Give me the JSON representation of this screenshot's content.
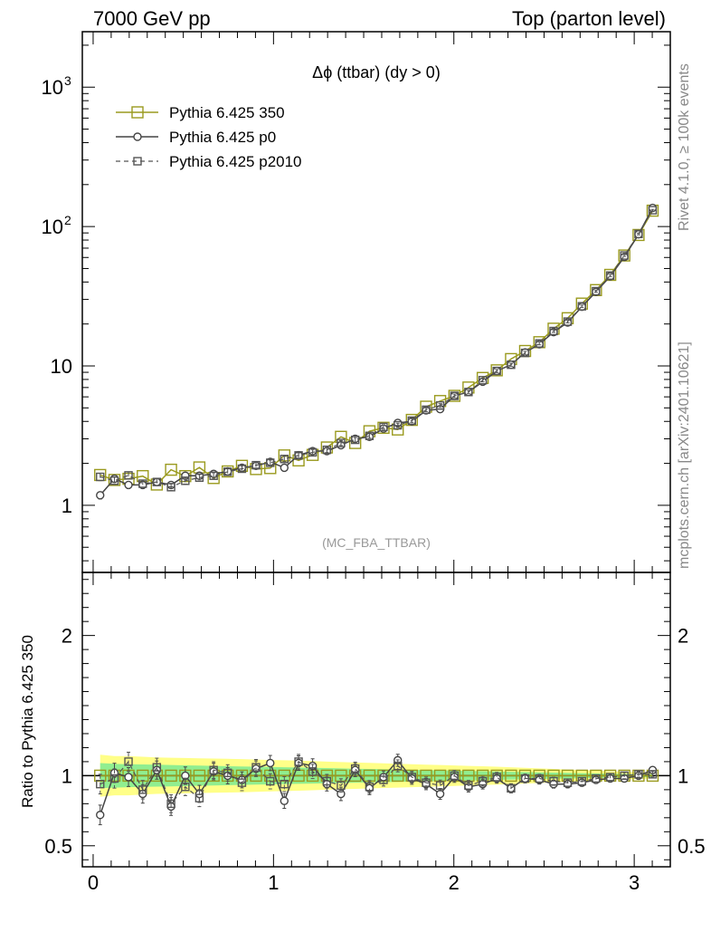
{
  "header": {
    "left": "7000 GeV pp",
    "right": "Top (parton level)"
  },
  "side_labels": {
    "rivet": "Rivet 4.1.0, ≥ 100k events",
    "mcplots": "mcplots.cern.ch [arXiv:2401.10621]"
  },
  "colors": {
    "p350": "#9a9a1e",
    "p0": "#444444",
    "p2010": "#555555",
    "band_inner": "#90ee90",
    "band_outer": "#ffff88"
  },
  "chart_data": [
    {
      "id": "main",
      "type": "line",
      "title": "Δϕ (ttbar) (dy > 0)",
      "watermark": "(MC_FBA_TTBAR)",
      "yscale": "log",
      "xlim": [
        -0.06,
        3.2
      ],
      "ylim": [
        0.33,
        2500
      ],
      "yticks": [
        {
          "value": 1,
          "label": "1"
        },
        {
          "value": 10,
          "label": "10"
        },
        {
          "value": 100,
          "label": "10",
          "exp": "2"
        },
        {
          "value": 1000,
          "label": "10",
          "exp": "3"
        }
      ],
      "x": [
        0.039,
        0.118,
        0.196,
        0.275,
        0.353,
        0.432,
        0.511,
        0.589,
        0.668,
        0.746,
        0.825,
        0.903,
        0.982,
        1.06,
        1.139,
        1.217,
        1.296,
        1.374,
        1.453,
        1.532,
        1.61,
        1.689,
        1.767,
        1.846,
        1.924,
        2.003,
        2.081,
        2.16,
        2.238,
        2.317,
        2.395,
        2.474,
        2.553,
        2.631,
        2.71,
        2.788,
        2.867,
        2.945,
        3.024,
        3.102
      ],
      "series": [
        {
          "name": "Pythia 6.425 350",
          "style": "square-solid",
          "values": [
            1.65,
            1.52,
            1.55,
            1.62,
            1.41,
            1.8,
            1.62,
            1.87,
            1.57,
            1.75,
            1.92,
            1.82,
            1.85,
            2.28,
            2.1,
            2.3,
            2.6,
            3.1,
            2.8,
            3.4,
            3.6,
            3.5,
            4.1,
            5.1,
            5.6,
            6.1,
            7.0,
            8.2,
            9.3,
            11.2,
            12.8,
            14.8,
            18.5,
            22.0,
            28.0,
            35.0,
            45.0,
            62.0,
            87.0,
            130.0
          ]
        },
        {
          "name": "Pythia 6.425 p0",
          "style": "circle-solid",
          "values": [
            1.18,
            1.55,
            1.4,
            1.4,
            1.47,
            1.4,
            1.63,
            1.63,
            1.68,
            1.75,
            1.86,
            1.92,
            2.05,
            1.86,
            2.29,
            2.45,
            2.45,
            2.7,
            3.0,
            3.1,
            3.55,
            3.9,
            4.0,
            4.8,
            4.9,
            6.1,
            6.5,
            7.7,
            9.2,
            10.2,
            12.5,
            14.3,
            17.5,
            20.5,
            26.6,
            34.0,
            44.0,
            60.5,
            88.0,
            136.0
          ]
        },
        {
          "name": "Pythia 6.425 p2010",
          "style": "square-dashed",
          "values": [
            1.6,
            1.5,
            1.64,
            1.43,
            1.47,
            1.35,
            1.5,
            1.58,
            1.63,
            1.74,
            1.83,
            1.94,
            2.02,
            2.15,
            2.28,
            2.4,
            2.5,
            2.8,
            2.95,
            3.15,
            3.65,
            3.75,
            4.05,
            4.85,
            5.2,
            6.1,
            6.5,
            7.9,
            9.2,
            10.2,
            12.4,
            14.5,
            17.8,
            20.8,
            26.8,
            34.4,
            44.5,
            62.0,
            88.5,
            131.0
          ]
        }
      ]
    },
    {
      "id": "ratio",
      "type": "line",
      "ylabel": "Ratio to Pythia 6.425 350",
      "xlim": [
        -0.06,
        3.2
      ],
      "ylim": [
        0.35,
        2.45
      ],
      "xticks": [
        0,
        1,
        2,
        3
      ],
      "yticks": [
        {
          "value": 0.5,
          "label": "0.5"
        },
        {
          "value": 1,
          "label": "1"
        },
        {
          "value": 2,
          "label": "2"
        }
      ],
      "band_inner": [
        0.09,
        0.085,
        0.082,
        0.08,
        0.078,
        0.076,
        0.074,
        0.072,
        0.07,
        0.068,
        0.066,
        0.064,
        0.062,
        0.06,
        0.058,
        0.056,
        0.054,
        0.052,
        0.05,
        0.048,
        0.046,
        0.044,
        0.042,
        0.04,
        0.038,
        0.036,
        0.034,
        0.032,
        0.03,
        0.028,
        0.026,
        0.024,
        0.022,
        0.02,
        0.018,
        0.016,
        0.014,
        0.012,
        0.011,
        0.01
      ],
      "band_outer": [
        0.15,
        0.14,
        0.14,
        0.135,
        0.13,
        0.128,
        0.126,
        0.124,
        0.122,
        0.12,
        0.118,
        0.115,
        0.112,
        0.11,
        0.107,
        0.104,
        0.1,
        0.097,
        0.094,
        0.091,
        0.088,
        0.085,
        0.082,
        0.079,
        0.076,
        0.073,
        0.07,
        0.067,
        0.064,
        0.06,
        0.056,
        0.052,
        0.048,
        0.044,
        0.04,
        0.036,
        0.032,
        0.028,
        0.024,
        0.02
      ],
      "series": [
        {
          "name": "Pythia 6.425 350",
          "style": "square-solid",
          "values": [
            1,
            1,
            1,
            1,
            1,
            1,
            1,
            1,
            1,
            1,
            1,
            1,
            1,
            1,
            1,
            1,
            1,
            1,
            1,
            1,
            1,
            1,
            1,
            1,
            1,
            1,
            1,
            1,
            1,
            1,
            1,
            1,
            1,
            1,
            1,
            1,
            1,
            1,
            1,
            1
          ]
        },
        {
          "name": "Pythia 6.425 p0",
          "style": "circle-solid",
          "values": [
            0.72,
            1.02,
            0.99,
            0.87,
            1.04,
            0.78,
            1.0,
            0.87,
            1.03,
            1.0,
            0.97,
            1.05,
            1.09,
            0.82,
            1.09,
            1.07,
            0.94,
            0.87,
            1.04,
            0.91,
            0.99,
            1.11,
            0.98,
            0.94,
            0.87,
            0.99,
            0.92,
            0.94,
            0.98,
            0.91,
            0.98,
            0.97,
            0.94,
            0.94,
            0.95,
            0.97,
            0.98,
            0.98,
            1.0,
            1.04
          ]
        },
        {
          "name": "Pythia 6.425 p2010",
          "style": "square-dashed",
          "values": [
            0.94,
            0.98,
            1.1,
            0.9,
            1.06,
            0.8,
            0.92,
            0.84,
            1.04,
            1.02,
            0.95,
            1.06,
            0.96,
            0.94,
            1.1,
            1.03,
            0.96,
            0.93,
            1.05,
            0.92,
            0.97,
            1.07,
            0.99,
            0.95,
            0.93,
            1.0,
            0.93,
            0.96,
            0.99,
            0.91,
            0.98,
            0.98,
            0.96,
            0.95,
            0.96,
            0.98,
            0.99,
            1.0,
            1.01,
            1.01
          ]
        }
      ]
    }
  ]
}
